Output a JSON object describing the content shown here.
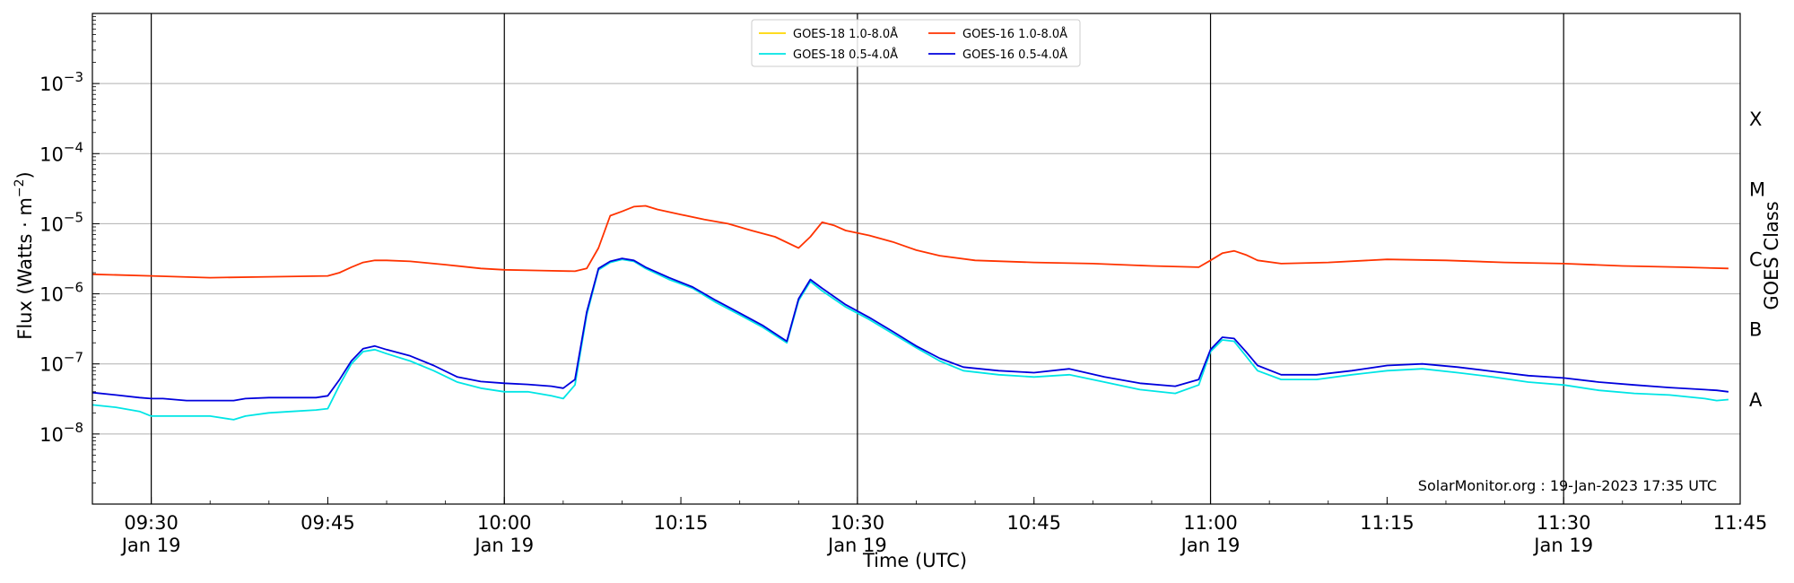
{
  "chart_data": {
    "type": "line",
    "xlabel": "Time (UTC)",
    "ylabel": "Flux (Watts · m",
    "ylabel_sup": "−2",
    "ylabel_close": ")",
    "right_label": "GOES Class",
    "xlim": [
      "2023-01-19 09:25",
      "2023-01-19 11:45"
    ],
    "ylim": [
      1e-09,
      0.01
    ],
    "yscale": "log",
    "grid": "horizontal",
    "legend_placement": "top-center",
    "credit": "SolarMonitor.org : 19-Jan-2023 17:35 UTC",
    "x_ticks": [
      {
        "t": "2023-01-19 09:30",
        "l1": "09:30",
        "l2": "Jan 19"
      },
      {
        "t": "2023-01-19 09:45",
        "l1": "09:45",
        "l2": ""
      },
      {
        "t": "2023-01-19 10:00",
        "l1": "10:00",
        "l2": "Jan 19"
      },
      {
        "t": "2023-01-19 10:15",
        "l1": "10:15",
        "l2": ""
      },
      {
        "t": "2023-01-19 10:30",
        "l1": "10:30",
        "l2": "Jan 19"
      },
      {
        "t": "2023-01-19 10:45",
        "l1": "10:45",
        "l2": ""
      },
      {
        "t": "2023-01-19 11:00",
        "l1": "11:00",
        "l2": "Jan 19"
      },
      {
        "t": "2023-01-19 11:15",
        "l1": "11:15",
        "l2": ""
      },
      {
        "t": "2023-01-19 11:30",
        "l1": "11:30",
        "l2": "Jan 19"
      },
      {
        "t": "2023-01-19 11:45",
        "l1": "11:45",
        "l2": ""
      }
    ],
    "vlines": [
      "2023-01-19 09:30",
      "2023-01-19 10:00",
      "2023-01-19 10:30",
      "2023-01-19 11:00",
      "2023-01-19 11:30"
    ],
    "y_ticks": [
      {
        "v": 1e-08,
        "base": "10",
        "exp": "−8"
      },
      {
        "v": 1e-07,
        "base": "10",
        "exp": "−7"
      },
      {
        "v": 1e-06,
        "base": "10",
        "exp": "−6"
      },
      {
        "v": 1e-05,
        "base": "10",
        "exp": "−5"
      },
      {
        "v": 0.0001,
        "base": "10",
        "exp": "−4"
      },
      {
        "v": 0.001,
        "base": "10",
        "exp": "−3"
      }
    ],
    "goes_classes": [
      {
        "label": "A",
        "v": 1e-08
      },
      {
        "label": "B",
        "v": 1e-07
      },
      {
        "label": "C",
        "v": 1e-06
      },
      {
        "label": "M",
        "v": 1e-05
      },
      {
        "label": "X",
        "v": 0.0001
      }
    ],
    "series": [
      {
        "name": "GOES-18 1.0-8.0Å",
        "color": "#ffd700",
        "x": [],
        "y": []
      },
      {
        "name": "GOES-18 0.5-4.0Å",
        "color": "#00e5e5",
        "x": [
          "2023-01-19 09:25",
          "2023-01-19 09:27",
          "2023-01-19 09:29",
          "2023-01-19 09:30",
          "2023-01-19 09:31",
          "2023-01-19 09:33",
          "2023-01-19 09:35",
          "2023-01-19 09:37",
          "2023-01-19 09:38",
          "2023-01-19 09:40",
          "2023-01-19 09:42",
          "2023-01-19 09:44",
          "2023-01-19 09:45",
          "2023-01-19 09:46",
          "2023-01-19 09:47",
          "2023-01-19 09:48",
          "2023-01-19 09:49",
          "2023-01-19 09:50",
          "2023-01-19 09:52",
          "2023-01-19 09:54",
          "2023-01-19 09:56",
          "2023-01-19 09:58",
          "2023-01-19 10:00",
          "2023-01-19 10:02",
          "2023-01-19 10:04",
          "2023-01-19 10:05",
          "2023-01-19 10:06",
          "2023-01-19 10:07",
          "2023-01-19 10:08",
          "2023-01-19 10:09",
          "2023-01-19 10:10",
          "2023-01-19 10:11",
          "2023-01-19 10:12",
          "2023-01-19 10:14",
          "2023-01-19 10:16",
          "2023-01-19 10:18",
          "2023-01-19 10:20",
          "2023-01-19 10:22",
          "2023-01-19 10:24",
          "2023-01-19 10:25",
          "2023-01-19 10:26",
          "2023-01-19 10:27",
          "2023-01-19 10:29",
          "2023-01-19 10:31",
          "2023-01-19 10:33",
          "2023-01-19 10:35",
          "2023-01-19 10:37",
          "2023-01-19 10:39",
          "2023-01-19 10:42",
          "2023-01-19 10:45",
          "2023-01-19 10:48",
          "2023-01-19 10:51",
          "2023-01-19 10:54",
          "2023-01-19 10:57",
          "2023-01-19 10:59",
          "2023-01-19 11:00",
          "2023-01-19 11:01",
          "2023-01-19 11:02",
          "2023-01-19 11:03",
          "2023-01-19 11:04",
          "2023-01-19 11:06",
          "2023-01-19 11:09",
          "2023-01-19 11:12",
          "2023-01-19 11:15",
          "2023-01-19 11:18",
          "2023-01-19 11:21",
          "2023-01-19 11:24",
          "2023-01-19 11:27",
          "2023-01-19 11:30",
          "2023-01-19 11:33",
          "2023-01-19 11:36",
          "2023-01-19 11:39",
          "2023-01-19 11:42",
          "2023-01-19 11:43",
          "2023-01-19 11:44"
        ],
        "y": [
          2.6e-08,
          2.4e-08,
          2.1e-08,
          1.8e-08,
          1.8e-08,
          1.8e-08,
          1.8e-08,
          1.6e-08,
          1.8e-08,
          2e-08,
          2.1e-08,
          2.2e-08,
          2.3e-08,
          5e-08,
          1e-07,
          1.5e-07,
          1.6e-07,
          1.4e-07,
          1.1e-07,
          8e-08,
          5.5e-08,
          4.5e-08,
          4e-08,
          4e-08,
          3.5e-08,
          3.2e-08,
          5e-08,
          5e-07,
          2.2e-06,
          2.8e-06,
          3.1e-06,
          2.9e-06,
          2.3e-06,
          1.6e-06,
          1.2e-06,
          7.5e-07,
          5e-07,
          3.3e-07,
          2e-07,
          8e-07,
          1.5e-06,
          1.1e-06,
          6.5e-07,
          4.3e-07,
          2.7e-07,
          1.7e-07,
          1.1e-07,
          8e-08,
          7e-08,
          6.5e-08,
          7e-08,
          5.5e-08,
          4.3e-08,
          3.8e-08,
          5e-08,
          1.5e-07,
          2.2e-07,
          2.1e-07,
          1.3e-07,
          8e-08,
          6e-08,
          6e-08,
          7e-08,
          8e-08,
          8.5e-08,
          7.5e-08,
          6.5e-08,
          5.5e-08,
          5e-08,
          4.2e-08,
          3.8e-08,
          3.6e-08,
          3.2e-08,
          3e-08,
          3.1e-08
        ]
      },
      {
        "name": "GOES-16 1.0-8.0Å",
        "color": "#ff3300",
        "x": [
          "2023-01-19 09:25",
          "2023-01-19 09:30",
          "2023-01-19 09:35",
          "2023-01-19 09:40",
          "2023-01-19 09:45",
          "2023-01-19 09:46",
          "2023-01-19 09:47",
          "2023-01-19 09:48",
          "2023-01-19 09:49",
          "2023-01-19 09:50",
          "2023-01-19 09:52",
          "2023-01-19 09:55",
          "2023-01-19 09:58",
          "2023-01-19 10:00",
          "2023-01-19 10:03",
          "2023-01-19 10:06",
          "2023-01-19 10:07",
          "2023-01-19 10:08",
          "2023-01-19 10:09",
          "2023-01-19 10:10",
          "2023-01-19 10:11",
          "2023-01-19 10:12",
          "2023-01-19 10:13",
          "2023-01-19 10:15",
          "2023-01-19 10:17",
          "2023-01-19 10:19",
          "2023-01-19 10:21",
          "2023-01-19 10:23",
          "2023-01-19 10:25",
          "2023-01-19 10:26",
          "2023-01-19 10:27",
          "2023-01-19 10:28",
          "2023-01-19 10:29",
          "2023-01-19 10:31",
          "2023-01-19 10:33",
          "2023-01-19 10:35",
          "2023-01-19 10:37",
          "2023-01-19 10:40",
          "2023-01-19 10:45",
          "2023-01-19 10:50",
          "2023-01-19 10:55",
          "2023-01-19 10:59",
          "2023-01-19 11:00",
          "2023-01-19 11:01",
          "2023-01-19 11:02",
          "2023-01-19 11:03",
          "2023-01-19 11:04",
          "2023-01-19 11:06",
          "2023-01-19 11:10",
          "2023-01-19 11:15",
          "2023-01-19 11:20",
          "2023-01-19 11:25",
          "2023-01-19 11:30",
          "2023-01-19 11:35",
          "2023-01-19 11:40",
          "2023-01-19 11:44"
        ],
        "y": [
          1.9e-06,
          1.8e-06,
          1.7e-06,
          1.75e-06,
          1.8e-06,
          2e-06,
          2.4e-06,
          2.8e-06,
          3e-06,
          3e-06,
          2.9e-06,
          2.6e-06,
          2.3e-06,
          2.2e-06,
          2.15e-06,
          2.1e-06,
          2.3e-06,
          4.5e-06,
          1.3e-05,
          1.5e-05,
          1.75e-05,
          1.8e-05,
          1.6e-05,
          1.35e-05,
          1.15e-05,
          1e-05,
          8e-06,
          6.5e-06,
          4.5e-06,
          6.5e-06,
          1.05e-05,
          9.5e-06,
          8e-06,
          6.8e-06,
          5.5e-06,
          4.2e-06,
          3.5e-06,
          3e-06,
          2.8e-06,
          2.7e-06,
          2.5e-06,
          2.4e-06,
          3e-06,
          3.8e-06,
          4.1e-06,
          3.6e-06,
          3e-06,
          2.7e-06,
          2.8e-06,
          3.1e-06,
          3e-06,
          2.8e-06,
          2.7e-06,
          2.5e-06,
          2.4e-06,
          2.3e-06
        ]
      },
      {
        "name": "GOES-16 0.5-4.0Å",
        "color": "#0000dd",
        "x": [
          "2023-01-19 09:25",
          "2023-01-19 09:27",
          "2023-01-19 09:29",
          "2023-01-19 09:30",
          "2023-01-19 09:31",
          "2023-01-19 09:33",
          "2023-01-19 09:35",
          "2023-01-19 09:37",
          "2023-01-19 09:38",
          "2023-01-19 09:40",
          "2023-01-19 09:42",
          "2023-01-19 09:44",
          "2023-01-19 09:45",
          "2023-01-19 09:46",
          "2023-01-19 09:47",
          "2023-01-19 09:48",
          "2023-01-19 09:49",
          "2023-01-19 09:50",
          "2023-01-19 09:52",
          "2023-01-19 09:54",
          "2023-01-19 09:56",
          "2023-01-19 09:58",
          "2023-01-19 10:00",
          "2023-01-19 10:02",
          "2023-01-19 10:04",
          "2023-01-19 10:05",
          "2023-01-19 10:06",
          "2023-01-19 10:07",
          "2023-01-19 10:08",
          "2023-01-19 10:09",
          "2023-01-19 10:10",
          "2023-01-19 10:11",
          "2023-01-19 10:12",
          "2023-01-19 10:14",
          "2023-01-19 10:16",
          "2023-01-19 10:18",
          "2023-01-19 10:20",
          "2023-01-19 10:22",
          "2023-01-19 10:24",
          "2023-01-19 10:25",
          "2023-01-19 10:26",
          "2023-01-19 10:27",
          "2023-01-19 10:29",
          "2023-01-19 10:31",
          "2023-01-19 10:33",
          "2023-01-19 10:35",
          "2023-01-19 10:37",
          "2023-01-19 10:39",
          "2023-01-19 10:42",
          "2023-01-19 10:45",
          "2023-01-19 10:48",
          "2023-01-19 10:51",
          "2023-01-19 10:54",
          "2023-01-19 10:57",
          "2023-01-19 10:59",
          "2023-01-19 11:00",
          "2023-01-19 11:01",
          "2023-01-19 11:02",
          "2023-01-19 11:03",
          "2023-01-19 11:04",
          "2023-01-19 11:06",
          "2023-01-19 11:09",
          "2023-01-19 11:12",
          "2023-01-19 11:15",
          "2023-01-19 11:18",
          "2023-01-19 11:21",
          "2023-01-19 11:24",
          "2023-01-19 11:27",
          "2023-01-19 11:30",
          "2023-01-19 11:33",
          "2023-01-19 11:36",
          "2023-01-19 11:39",
          "2023-01-19 11:42",
          "2023-01-19 11:43",
          "2023-01-19 11:44"
        ],
        "y": [
          3.9e-08,
          3.6e-08,
          3.3e-08,
          3.2e-08,
          3.2e-08,
          3e-08,
          3e-08,
          3e-08,
          3.2e-08,
          3.3e-08,
          3.3e-08,
          3.3e-08,
          3.5e-08,
          6e-08,
          1.1e-07,
          1.65e-07,
          1.8e-07,
          1.6e-07,
          1.3e-07,
          9.5e-08,
          6.5e-08,
          5.6e-08,
          5.3e-08,
          5.1e-08,
          4.8e-08,
          4.5e-08,
          6e-08,
          5.5e-07,
          2.3e-06,
          2.9e-06,
          3.2e-06,
          3e-06,
          2.4e-06,
          1.7e-06,
          1.25e-06,
          8e-07,
          5.3e-07,
          3.5e-07,
          2.1e-07,
          8.5e-07,
          1.6e-06,
          1.2e-06,
          7e-07,
          4.6e-07,
          2.9e-07,
          1.8e-07,
          1.2e-07,
          9e-08,
          8e-08,
          7.5e-08,
          8.5e-08,
          6.5e-08,
          5.3e-08,
          4.8e-08,
          6e-08,
          1.6e-07,
          2.4e-07,
          2.3e-07,
          1.5e-07,
          9.5e-08,
          7e-08,
          7e-08,
          8e-08,
          9.5e-08,
          1e-07,
          9e-08,
          7.8e-08,
          6.8e-08,
          6.3e-08,
          5.5e-08,
          5e-08,
          4.6e-08,
          4.3e-08,
          4.2e-08,
          4e-08
        ]
      }
    ]
  }
}
